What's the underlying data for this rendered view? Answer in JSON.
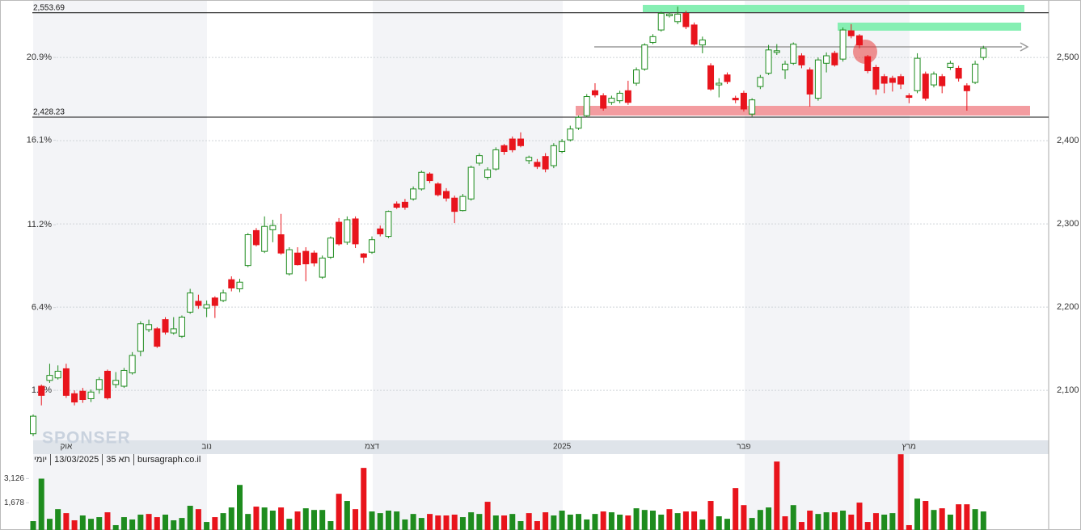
{
  "chart_data": {
    "type": "candlestick",
    "categories": [
      null,
      null,
      null,
      null,
      "אוק",
      null,
      null,
      null,
      null,
      null,
      null,
      null,
      null,
      null,
      null,
      null,
      null,
      null,
      null,
      null,
      null,
      "נוב",
      null,
      null,
      null,
      null,
      null,
      null,
      null,
      null,
      null,
      null,
      null,
      null,
      null,
      null,
      null,
      null,
      null,
      null,
      null,
      "דצמ",
      null,
      null,
      null,
      null,
      null,
      null,
      null,
      null,
      null,
      null,
      null,
      null,
      null,
      null,
      null,
      null,
      null,
      null,
      null,
      null,
      null,
      null,
      "2025",
      null,
      null,
      null,
      null,
      null,
      null,
      null,
      null,
      null,
      null,
      null,
      null,
      null,
      null,
      null,
      null,
      null,
      null,
      null,
      null,
      null,
      "פבר",
      null,
      null,
      null,
      null,
      null,
      null,
      null,
      null,
      null,
      null,
      null,
      null,
      null,
      null,
      null,
      null,
      null,
      null,
      null,
      "מרץ",
      null,
      null,
      null,
      null,
      null,
      null,
      null,
      null,
      null
    ],
    "open": [
      2048,
      2105,
      2112,
      2115,
      2126,
      2096,
      2099,
      2090,
      2101,
      2123,
      2107,
      2105,
      2121,
      2147,
      2173,
      2174,
      2185,
      2169,
      2165,
      2194,
      2207,
      2199,
      2211,
      2208,
      2233,
      2222,
      2250,
      2292,
      2267,
      2293,
      2287,
      2240,
      2265,
      2267,
      2265,
      2236,
      2260,
      2302,
      2278,
      2306,
      2264,
      2266,
      2294,
      2285,
      2324,
      2326,
      2330,
      2342,
      2360,
      2348,
      2339,
      2331,
      2316,
      2330,
      2373,
      2356,
      2366,
      2394,
      2402,
      2402,
      2376,
      2374,
      2381,
      2370,
      2387,
      2401,
      2415,
      2430,
      2460,
      2454,
      2446,
      2448,
      2460,
      2469,
      2486,
      2518,
      2533,
      2550,
      2543,
      2553,
      2539,
      2515,
      2490,
      2467,
      2479,
      2451,
      2457,
      2432,
      2465,
      2481,
      2506,
      2485,
      2493,
      2502,
      2485,
      2451,
      2493,
      2505,
      2498,
      2532,
      2526,
      2501,
      2488,
      2477,
      2475,
      2477,
      2454,
      2460,
      2480,
      2467,
      2477,
      2488,
      2487,
      2466,
      2470,
      2500
    ],
    "high": [
      2071,
      2107,
      2132,
      2130,
      2132,
      2100,
      2103,
      2101,
      2116,
      2125,
      2122,
      2127,
      2146,
      2183,
      2185,
      2176,
      2188,
      2188,
      2190,
      2222,
      2215,
      2208,
      2213,
      2221,
      2237,
      2234,
      2289,
      2295,
      2309,
      2305,
      2312,
      2272,
      2272,
      2272,
      2268,
      2262,
      2285,
      2307,
      2309,
      2309,
      2265,
      2285,
      2298,
      2316,
      2327,
      2330,
      2345,
      2364,
      2362,
      2350,
      2343,
      2334,
      2336,
      2370,
      2385,
      2368,
      2392,
      2396,
      2405,
      2410,
      2382,
      2378,
      2385,
      2397,
      2402,
      2418,
      2430,
      2456,
      2469,
      2457,
      2454,
      2460,
      2472,
      2488,
      2517,
      2528,
      2555,
      2554,
      2561,
      2556,
      2542,
      2525,
      2493,
      2475,
      2482,
      2454,
      2460,
      2451,
      2479,
      2515,
      2516,
      2496,
      2518,
      2505,
      2488,
      2500,
      2506,
      2508,
      2536,
      2540,
      2528,
      2503,
      2491,
      2480,
      2478,
      2480,
      2457,
      2505,
      2483,
      2483,
      2480,
      2496,
      2490,
      2469,
      2496,
      2514
    ],
    "low": [
      2045,
      2082,
      2109,
      2113,
      2091,
      2082,
      2085,
      2086,
      2096,
      2089,
      2103,
      2103,
      2119,
      2141,
      2170,
      2151,
      2167,
      2167,
      2163,
      2192,
      2198,
      2188,
      2187,
      2206,
      2219,
      2218,
      2248,
      2273,
      2265,
      2278,
      2263,
      2238,
      2250,
      2231,
      2249,
      2234,
      2258,
      2274,
      2275,
      2271,
      2253,
      2264,
      2285,
      2283,
      2318,
      2317,
      2328,
      2340,
      2349,
      2333,
      2327,
      2301,
      2315,
      2328,
      2370,
      2353,
      2364,
      2383,
      2386,
      2392,
      2372,
      2366,
      2362,
      2367,
      2385,
      2399,
      2413,
      2428,
      2452,
      2436,
      2443,
      2445,
      2443,
      2466,
      2484,
      2516,
      2531,
      2548,
      2540,
      2534,
      2514,
      2505,
      2460,
      2452,
      2468,
      2445,
      2435,
      2429,
      2462,
      2479,
      2503,
      2474,
      2491,
      2487,
      2441,
      2448,
      2482,
      2489,
      2495,
      2523,
      2511,
      2481,
      2455,
      2457,
      2459,
      2462,
      2445,
      2457,
      2448,
      2464,
      2457,
      2485,
      2471,
      2436,
      2468,
      2497
    ],
    "close": [
      2069,
      2094,
      2118,
      2123,
      2094,
      2086,
      2089,
      2098,
      2113,
      2091,
      2112,
      2124,
      2142,
      2180,
      2179,
      2153,
      2170,
      2174,
      2188,
      2217,
      2202,
      2203,
      2202,
      2217,
      2223,
      2230,
      2287,
      2275,
      2297,
      2298,
      2265,
      2269,
      2251,
      2252,
      2253,
      2259,
      2283,
      2276,
      2305,
      2276,
      2260,
      2281,
      2288,
      2315,
      2320,
      2320,
      2342,
      2362,
      2352,
      2335,
      2331,
      2315,
      2333,
      2368,
      2382,
      2365,
      2389,
      2387,
      2389,
      2394,
      2380,
      2369,
      2366,
      2394,
      2399,
      2414,
      2428,
      2453,
      2455,
      2439,
      2451,
      2457,
      2446,
      2485,
      2515,
      2525,
      2553,
      2552,
      2552,
      2537,
      2516,
      2521,
      2462,
      2469,
      2471,
      2449,
      2438,
      2449,
      2476,
      2509,
      2508,
      2492,
      2516,
      2491,
      2456,
      2497,
      2502,
      2491,
      2533,
      2526,
      2515,
      2484,
      2462,
      2469,
      2470,
      2468,
      2452,
      2499,
      2451,
      2480,
      2466,
      2493,
      2475,
      2460,
      2492,
      2511
    ],
    "up_color": "#1e8c1e",
    "down_color": "#e8141c",
    "ylim": [
      2040,
      2569
    ],
    "yticks": [
      {
        "value": 2100,
        "label": "2,100"
      },
      {
        "value": 2200,
        "label": "2,200"
      },
      {
        "value": 2300,
        "label": "2,300"
      },
      {
        "value": 2400,
        "label": "2,400"
      },
      {
        "value": 2500,
        "label": "2,500"
      }
    ],
    "y2lim": [
      -1.3,
      24.23
    ],
    "y2ticks": [
      {
        "value": 1.6,
        "label": "1.6%"
      },
      {
        "value": 6.4,
        "label": "6.4%"
      },
      {
        "value": 11.2,
        "label": "11.2%"
      },
      {
        "value": 16.1,
        "label": "16.1%"
      },
      {
        "value": 20.9,
        "label": "20.9%"
      }
    ],
    "grid": true,
    "hlines": [
      {
        "value": 2553.69,
        "label": "2,553.69"
      },
      {
        "value": 2428.23,
        "label": "2,428.23"
      }
    ],
    "volume": {
      "values": [
        580,
        3126,
        720,
        1300,
        1060,
        630,
        920,
        720,
        820,
        1110,
        340,
        820,
        680,
        970,
        1010,
        820,
        970,
        630,
        770,
        1500,
        1300,
        530,
        820,
        1060,
        1400,
        2750,
        1010,
        1450,
        1400,
        1210,
        1400,
        720,
        1160,
        1350,
        1250,
        1250,
        580,
        2220,
        1790,
        1300,
        3770,
        1160,
        1060,
        1210,
        1160,
        680,
        1010,
        770,
        1010,
        920,
        920,
        970,
        820,
        1110,
        1010,
        1740,
        920,
        920,
        1010,
        580,
        1060,
        580,
        1110,
        920,
        1210,
        970,
        1010,
        680,
        1010,
        1160,
        1110,
        970,
        920,
        1350,
        1250,
        1210,
        970,
        1300,
        1060,
        1160,
        1160,
        680,
        1790,
        870,
        720,
        2560,
        1540,
        770,
        1250,
        1400,
        4150,
        870,
        1540,
        530,
        1210,
        1010,
        1110,
        1110,
        1210,
        970,
        1690,
        530,
        1060,
        970,
        1060,
        4590,
        340,
        1930,
        1790,
        1250,
        1350,
        970,
        1590,
        1590,
        1300,
        1160
      ],
      "ylim": [
        0,
        4600
      ],
      "yticks": [
        {
          "value": 1678,
          "label": "1,678"
        },
        {
          "value": 3126,
          "label": "3,126"
        }
      ]
    },
    "footer": [
      "יומי",
      "13/03/2025",
      "תא 35",
      "bursagraph.co.il"
    ],
    "watermark": "SPONSER"
  }
}
